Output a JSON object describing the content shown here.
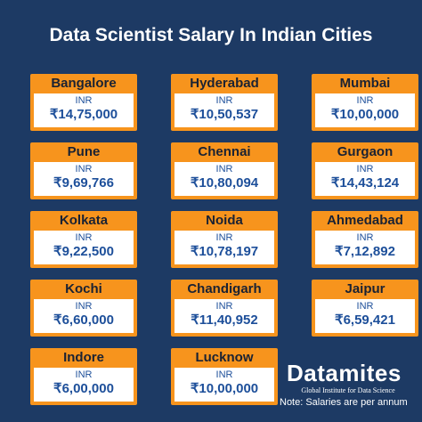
{
  "title": "Data Scientist Salary In Indian Cities",
  "cards": [
    {
      "city": "Bangalore",
      "currency": "INR",
      "salary": "₹14,75,000"
    },
    {
      "city": "Hyderabad",
      "currency": "INR",
      "salary": "₹10,50,537"
    },
    {
      "city": "Mumbai",
      "currency": "INR",
      "salary": "₹10,00,000"
    },
    {
      "city": "Pune",
      "currency": "INR",
      "salary": "₹9,69,766"
    },
    {
      "city": "Chennai",
      "currency": "INR",
      "salary": "₹10,80,094"
    },
    {
      "city": "Gurgaon",
      "currency": "INR",
      "salary": "₹14,43,124"
    },
    {
      "city": "Kolkata",
      "currency": "INR",
      "salary": "₹9,22,500"
    },
    {
      "city": "Noida",
      "currency": "INR",
      "salary": "₹10,78,197"
    },
    {
      "city": "Ahmedabad",
      "currency": "INR",
      "salary": "₹7,12,892"
    },
    {
      "city": "Kochi",
      "currency": "INR",
      "salary": "₹6,60,000"
    },
    {
      "city": "Chandigarh",
      "currency": "INR",
      "salary": "₹11,40,952"
    },
    {
      "city": "Jaipur",
      "currency": "INR",
      "salary": "₹6,59,421"
    },
    {
      "city": "Indore",
      "currency": "INR",
      "salary": "₹6,00,000"
    },
    {
      "city": "Lucknow",
      "currency": "INR",
      "salary": "₹10,00,000"
    }
  ],
  "logo": {
    "name": "Datamites",
    "tagline": "Global Institute for Data Science"
  },
  "note": "Note: Salaries are per annum"
}
